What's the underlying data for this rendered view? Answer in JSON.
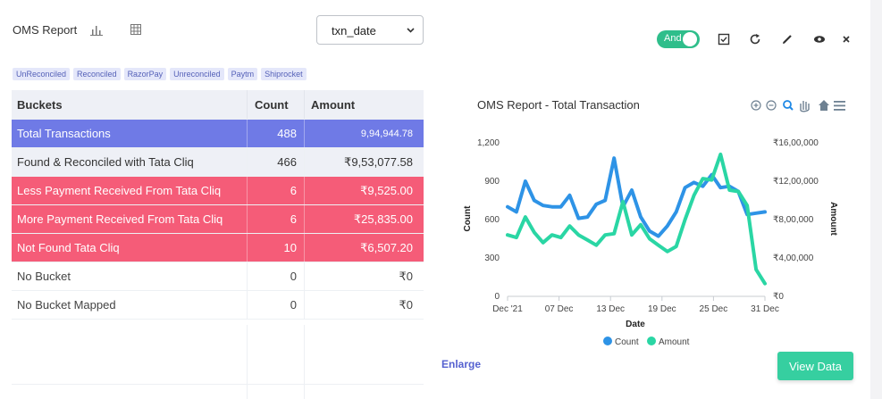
{
  "header": {
    "title": "OMS Report",
    "select_value": "txn_date",
    "toggle_label": "And"
  },
  "chips": [
    "UnReconciled",
    "Reconciled",
    "RazorPay",
    "Unreconciled",
    "Paytm",
    "Shiprocket"
  ],
  "table": {
    "headers": [
      "Buckets",
      "Count",
      "Amount"
    ],
    "rows": [
      {
        "bucket": "Total  Transactions",
        "count": "488",
        "amount": "9,94,944.78"
      },
      {
        "bucket": "Found & Reconciled with Tata Cliq",
        "count": "466",
        "amount": "₹9,53,077.58"
      },
      {
        "bucket": "Less Payment Received From Tata Cliq",
        "count": "6",
        "amount": "₹9,525.00"
      },
      {
        "bucket": "More Payment Received From Tata Cliq",
        "count": "6",
        "amount": "₹25,835.00"
      },
      {
        "bucket": "Not Found Tata Cliq",
        "count": "10",
        "amount": "₹6,507.20"
      },
      {
        "bucket": "No Bucket",
        "count": "0",
        "amount": "₹0"
      },
      {
        "bucket": "No Bucket Mapped",
        "count": "0",
        "amount": "₹0"
      }
    ]
  },
  "chart_title": "OMS Report - Total Transaction",
  "chart_data": {
    "type": "line",
    "xlabel": "Date",
    "ylabel": "Count",
    "y2label": "Amount",
    "x_ticks": [
      "Dec '21",
      "07 Dec",
      "13 Dec",
      "19 Dec",
      "25 Dec",
      "31 Dec"
    ],
    "y_ticks": [
      "0",
      "300",
      "600",
      "900",
      "1,200"
    ],
    "y2_ticks": [
      "₹0",
      "₹4,00,000",
      "₹8,00,000",
      "₹12,00,000",
      "₹16,00,000"
    ],
    "ylim": [
      0,
      1200
    ],
    "y2lim": [
      0,
      1600000
    ],
    "series": [
      {
        "name": "Count",
        "color": "#2e93e6",
        "axis": "left",
        "values": [
          700,
          660,
          900,
          750,
          710,
          700,
          700,
          790,
          610,
          620,
          720,
          750,
          1080,
          700,
          830,
          620,
          510,
          470,
          550,
          660,
          850,
          890,
          860,
          950,
          850,
          860,
          820,
          640,
          650,
          660
        ]
      },
      {
        "name": "Amount",
        "color": "#2ad6a4",
        "axis": "left",
        "values": [
          480,
          460,
          620,
          500,
          420,
          480,
          460,
          550,
          480,
          440,
          400,
          480,
          490,
          740,
          480,
          560,
          450,
          400,
          350,
          390,
          600,
          790,
          920,
          910,
          1110,
          830,
          820,
          710,
          210,
          100
        ]
      }
    ],
    "legend": "bottom-center"
  },
  "buttons": {
    "enlarge": "Enlarge",
    "view_data": "View Data"
  }
}
